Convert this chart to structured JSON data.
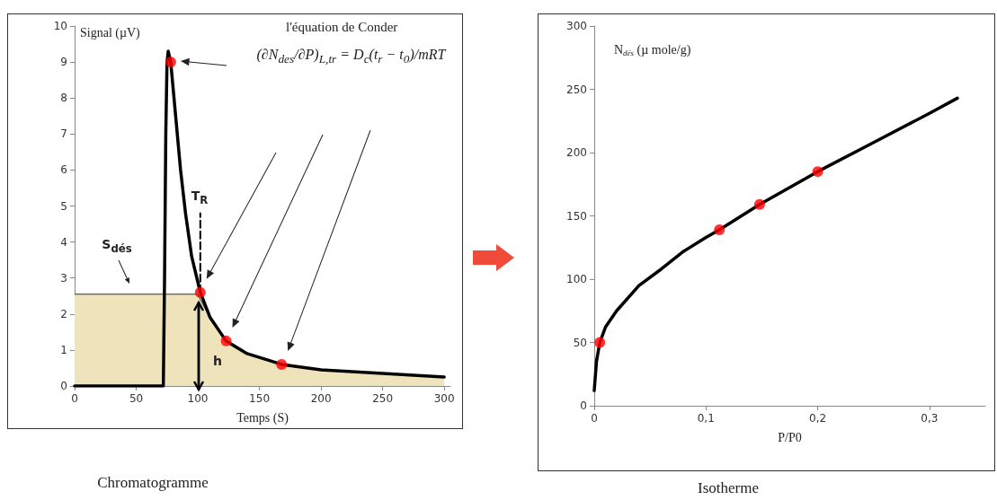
{
  "chart_data": [
    {
      "type": "line",
      "xlabel": "Temps (S)",
      "ylabel": "Signal (µV)",
      "xlim": [
        0,
        305
      ],
      "xticks": [
        0,
        50,
        100,
        150,
        200,
        250,
        300
      ],
      "ylim": [
        0,
        10
      ],
      "yticks": [
        0,
        1,
        2,
        3,
        4,
        5,
        6,
        7,
        8,
        9,
        10
      ],
      "annotations": [
        "l'équation  de Conder",
        "(∂N$_{des}$/∂P)$_{L,tr}$ = D$_{c}$(t$_{r}$ − t$_{0}$)/mRT",
        "S$_{dés}$",
        "h",
        "T$_{R}$",
        "Chromatogramme"
      ],
      "series": [
        {
          "type": "area",
          "color": "#efe3bc",
          "x": [
            0,
            100,
            102,
            110,
            123,
            140,
            168,
            200,
            250,
            300
          ],
          "values": [
            2.55,
            2.55,
            2.4,
            1.9,
            1.25,
            0.9,
            0.6,
            0.45,
            0.35,
            0.25
          ]
        },
        {
          "type": "line",
          "color": "#000000",
          "marker": "none",
          "x": [
            0,
            72,
            73,
            74,
            75,
            76,
            78,
            82,
            86,
            90,
            95,
            102,
            110,
            123,
            140,
            168,
            200,
            250,
            300
          ],
          "values": [
            0,
            0,
            3,
            7,
            9,
            9.3,
            9,
            7.5,
            6,
            4.8,
            3.6,
            2.6,
            1.9,
            1.25,
            0.9,
            0.6,
            0.45,
            0.35,
            0.25
          ]
        },
        {
          "type": "line",
          "color": "#000000",
          "marker": "none",
          "line_style": "dashed",
          "x": [
            102,
            102
          ],
          "values": [
            2.6,
            4.8
          ]
        },
        {
          "type": "scatter",
          "color": "#ff0000",
          "marker": "circle",
          "x": [
            78,
            102,
            123,
            168
          ],
          "values": [
            9,
            2.6,
            1.25,
            0.6
          ]
        }
      ]
    },
    {
      "type": "line",
      "xlabel": "P/P0",
      "ylabel": "N$_{dés}$ (µ mole/g)",
      "xlim": [
        0,
        0.35
      ],
      "xticks": [
        0,
        {
          "value": 0.1,
          "label": "0,1"
        },
        {
          "value": 0.2,
          "label": "0,2"
        },
        {
          "value": 0.3,
          "label": "0,3"
        }
      ],
      "ylim": [
        0,
        300
      ],
      "yticks": [
        0,
        50,
        100,
        150,
        200,
        250,
        300
      ],
      "annotations": [
        "Isotherme"
      ],
      "series": [
        {
          "type": "line",
          "color": "#000000",
          "marker": "none",
          "x": [
            0,
            0.002,
            0.005,
            0.01,
            0.02,
            0.04,
            0.06,
            0.08,
            0.1,
            0.112,
            0.148,
            0.2,
            0.25,
            0.3,
            0.325
          ],
          "values": [
            12,
            35,
            50,
            62,
            75,
            95,
            108,
            122,
            133,
            139,
            159,
            185,
            208,
            231,
            243
          ]
        },
        {
          "type": "scatter",
          "color": "#ff0000",
          "marker": "circle",
          "x": [
            0.005,
            0.112,
            0.148,
            0.2
          ],
          "values": [
            50,
            139,
            159,
            185
          ]
        }
      ]
    }
  ]
}
